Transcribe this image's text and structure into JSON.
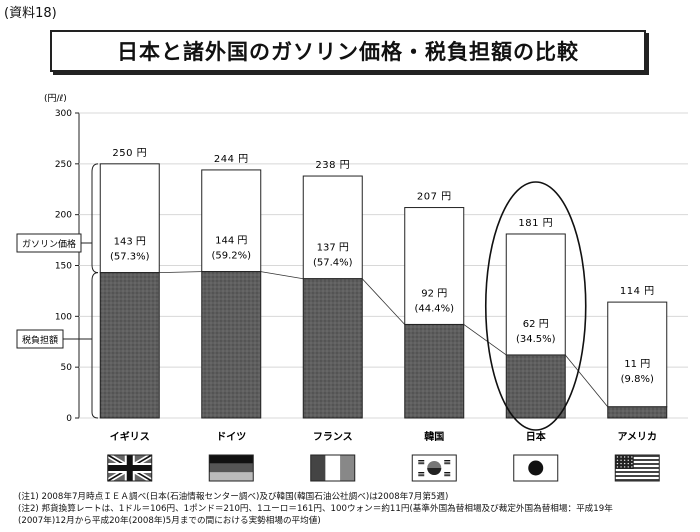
{
  "ref_label": "(資料18)",
  "title": "日本と諸外国のガソリン価格・税負担額の比較",
  "chart_data": {
    "type": "bar",
    "stacked": true,
    "unit_label": "(円/ℓ)",
    "ylim": [
      0,
      300
    ],
    "yticks": [
      0,
      50,
      100,
      150,
      200,
      250,
      300
    ],
    "categories": [
      "イギリス",
      "ドイツ",
      "フランス",
      "韓国",
      "日本",
      "アメリカ"
    ],
    "total_labels": [
      "250 円",
      "244 円",
      "238 円",
      "207 円",
      "181 円",
      "114 円"
    ],
    "totals": [
      250,
      244,
      238,
      207,
      181,
      114
    ],
    "tax_values": [
      143,
      144,
      137,
      92,
      62,
      11
    ],
    "tax_labels": [
      "143 円",
      "144 円",
      "137 円",
      "92 円",
      "62 円",
      "11 円"
    ],
    "tax_share_labels": [
      "(57.3%)",
      "(59.2%)",
      "(57.4%)",
      "(44.4%)",
      "(34.5%)",
      "(9.8%)"
    ],
    "legend": [
      "ガソリン価格",
      "税負担額"
    ],
    "highlight": "日本",
    "flags": [
      "uk-flag",
      "germany-flag",
      "france-flag",
      "korea-flag",
      "japan-flag",
      "usa-flag"
    ],
    "colors": {
      "tax": "#595959",
      "price": "#ffffff",
      "line": "#222222"
    }
  },
  "notes": [
    "(注1) 2008年7月時点ＩＥＡ調べ(日本(石油情報センター調べ)及び韓国(韓国石油公社調べ)は2008年7月第5週)",
    "(注2) 邦貨換算レートは、1ドル＝106円、1ポンド＝210円、1ユーロ＝161円、100ウォン＝約11円(基準外国為替相場及び裁定外国為替相場：平成19年",
    "(2007年)12月から平成20年(2008年)5月までの間における実勢相場の平均値)"
  ]
}
